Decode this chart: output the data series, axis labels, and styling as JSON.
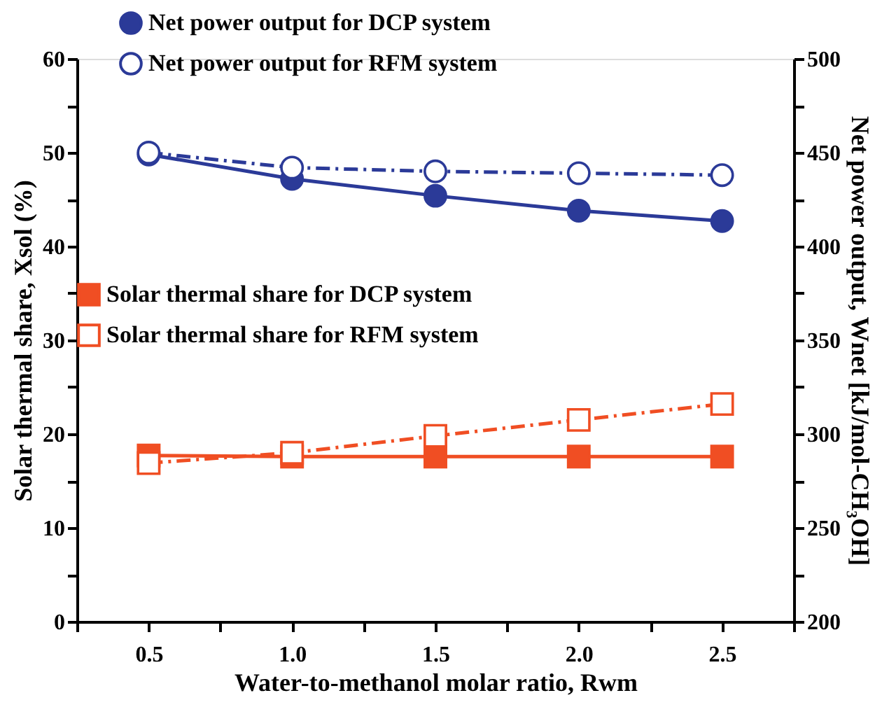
{
  "chart_data": {
    "type": "line",
    "xlabel": "Water-to-methanol molar ratio, Rwm",
    "ylabel": "Solar thermal share, Xsol (%)",
    "y2label": "Net power output, Wnet [kJ/mol-CH₃OH]",
    "x": [
      0.5,
      1.0,
      1.5,
      2.0,
      2.5
    ],
    "series": [
      {
        "name": "Net power output for DCP system",
        "color": "#2b3a98",
        "axis": "y2",
        "marker": "circle",
        "line_style": "solid",
        "values": [
          449,
          436,
          427,
          419,
          413.5
        ]
      },
      {
        "name": "Net power output for RFM system",
        "color": "#2b3a98",
        "axis": "y2",
        "marker": "circle",
        "line_style": "dashed",
        "values": [
          450,
          442,
          440,
          439,
          438
        ]
      },
      {
        "name": "Solar thermal share for DCP system",
        "color": "#f04e23",
        "axis": "y",
        "marker": "square",
        "line_style": "solid",
        "values": [
          17.7,
          17.6,
          17.6,
          17.6,
          17.6
        ]
      },
      {
        "name": "Solar thermal share for RFM system",
        "color": "#f04e23",
        "axis": "y",
        "marker": "square",
        "line_style": "dashed",
        "values": [
          16.9,
          18.0,
          19.8,
          21.5,
          23.2
        ]
      }
    ],
    "xlim": [
      0.25,
      2.75
    ],
    "xticks": [
      {
        "value": 0.25,
        "label": null
      },
      0.5,
      {
        "value": 0.75,
        "label": null
      },
      {
        "value": 1,
        "label": "1.0"
      },
      {
        "value": 1.25,
        "label": null
      },
      1.5,
      {
        "value": 1.75,
        "label": null
      },
      {
        "value": 2,
        "label": "2.0"
      },
      {
        "value": 2.25,
        "label": null
      },
      2.5,
      {
        "value": 2.75,
        "label": null
      }
    ],
    "ylim": [
      0,
      60
    ],
    "yticks": [
      0,
      {
        "value": 5,
        "label": null
      },
      10,
      {
        "value": 15,
        "label": null
      },
      20,
      {
        "value": 25,
        "label": null
      },
      30,
      {
        "value": 35,
        "label": null
      },
      40,
      {
        "value": 45,
        "label": null
      },
      50,
      {
        "value": 55,
        "label": null
      },
      60
    ],
    "y2lim": [
      200,
      500
    ],
    "y2ticks": [
      200,
      {
        "value": 225,
        "label": null
      },
      250,
      {
        "value": 275,
        "label": null
      },
      300,
      {
        "value": 325,
        "label": null
      },
      350,
      {
        "value": 375,
        "label": null
      },
      400,
      {
        "value": 425,
        "label": null
      },
      450,
      {
        "value": 475,
        "label": null
      },
      500
    ],
    "grid": false,
    "legend": "top left"
  }
}
